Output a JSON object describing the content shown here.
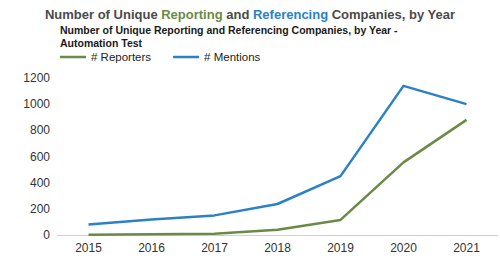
{
  "chart_data": {
    "type": "line",
    "title": [
      "Number of Unique ",
      "Reporting",
      " and ",
      "Referencing",
      " Companies, by Year"
    ],
    "subtitle": "Number of Unique Reporting and Referencing Companies, by Year - Automation Test",
    "categories": [
      "2015",
      "2016",
      "2017",
      "2018",
      "2019",
      "2020",
      "2021"
    ],
    "series": [
      {
        "name": "# Reporters",
        "color": "#6b8a45",
        "values": [
          2,
          5,
          10,
          40,
          115,
          555,
          880
        ]
      },
      {
        "name": "# Mentions",
        "color": "#2b81c6",
        "values": [
          80,
          118,
          150,
          237,
          450,
          1140,
          1000
        ]
      }
    ],
    "ylim": [
      0,
      1200
    ],
    "yticks": [
      0,
      200,
      400,
      600,
      800,
      1000,
      1200
    ],
    "grid": false,
    "legend": "top-left"
  }
}
